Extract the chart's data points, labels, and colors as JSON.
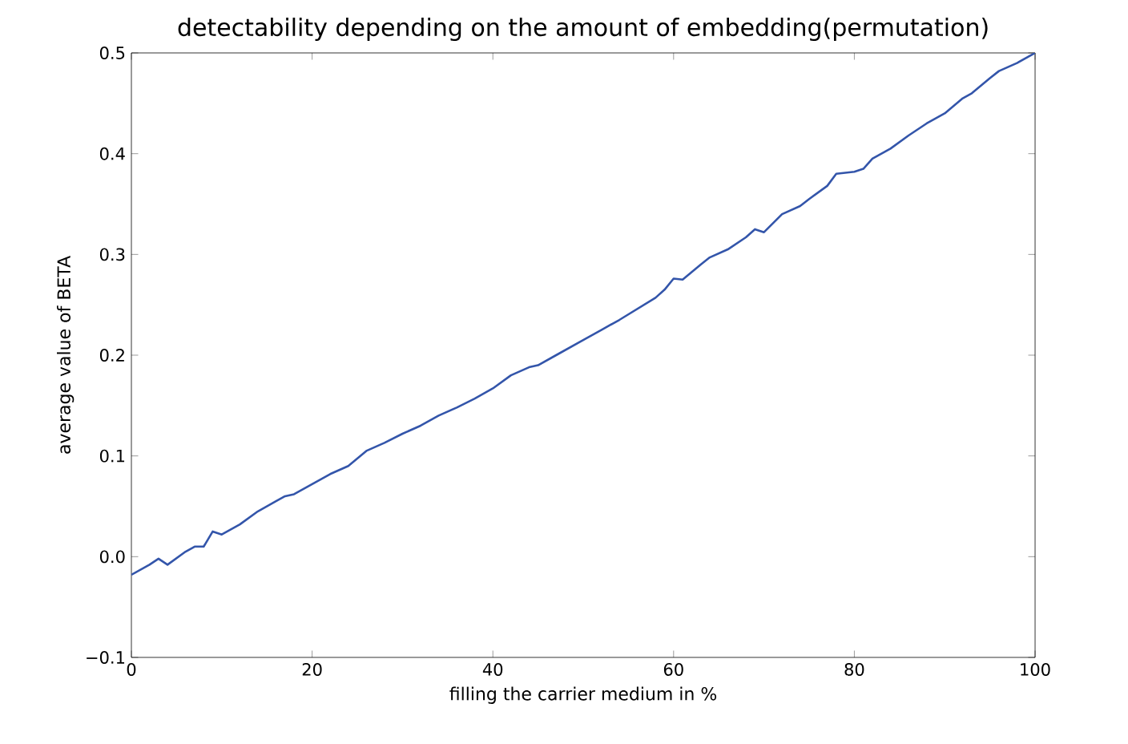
{
  "chart_data": {
    "type": "line",
    "title": "detectability depending on the amount of embedding(permutation)",
    "xlabel": "filling the carrier medium in %",
    "ylabel": "average value of BETA",
    "x": [
      0,
      2,
      3,
      4,
      6,
      7,
      8,
      9,
      10,
      12,
      14,
      16,
      17,
      18,
      20,
      22,
      24,
      26,
      28,
      30,
      32,
      34,
      36,
      38,
      40,
      42,
      44,
      45,
      47,
      50,
      52,
      54,
      56,
      58,
      59,
      60,
      61,
      63,
      64,
      66,
      68,
      69,
      70,
      72,
      74,
      75,
      77,
      78,
      80,
      81,
      82,
      84,
      86,
      88,
      90,
      92,
      93,
      95,
      96,
      98,
      100
    ],
    "series": [
      {
        "color": "#3355aa",
        "values": [
          -0.018,
          -0.008,
          -0.002,
          -0.008,
          0.005,
          0.01,
          0.01,
          0.025,
          0.022,
          0.032,
          0.045,
          0.055,
          0.06,
          0.062,
          0.072,
          0.082,
          0.09,
          0.105,
          0.113,
          0.122,
          0.13,
          0.14,
          0.148,
          0.157,
          0.167,
          0.18,
          0.188,
          0.19,
          0.2,
          0.215,
          0.225,
          0.235,
          0.246,
          0.257,
          0.265,
          0.276,
          0.275,
          0.29,
          0.297,
          0.305,
          0.317,
          0.325,
          0.322,
          0.34,
          0.348,
          0.355,
          0.368,
          0.38,
          0.382,
          0.385,
          0.395,
          0.405,
          0.418,
          0.43,
          0.44,
          0.455,
          0.46,
          0.475,
          0.482,
          0.49,
          0.5
        ]
      }
    ],
    "xlim": [
      0,
      100
    ],
    "xticks": [
      0,
      20,
      40,
      60,
      80,
      100
    ],
    "ylim": [
      -0.1,
      0.5
    ],
    "yticks": [
      {
        "value": -0.1,
        "label": "−0.1"
      },
      {
        "value": 0,
        "label": "0.0"
      },
      {
        "value": 0.1,
        "label": "0.1"
      },
      {
        "value": 0.2,
        "label": "0.2"
      },
      {
        "value": 0.3,
        "label": "0.3"
      },
      {
        "value": 0.4,
        "label": "0.4"
      },
      {
        "value": 0.5,
        "label": "0.5"
      }
    ],
    "grid": false,
    "legend": false,
    "marker": "none",
    "line_style": "solid"
  }
}
